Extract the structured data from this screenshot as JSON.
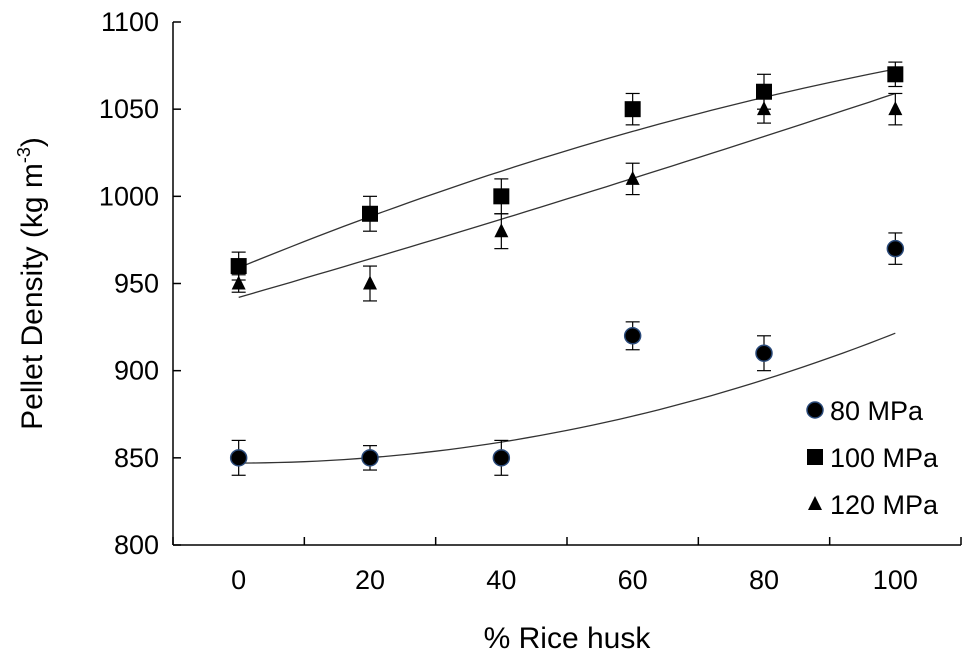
{
  "chart_data": {
    "type": "scatter",
    "xlabel": "% Rice husk",
    "ylabel_main": "Pellet Density (kg m",
    "ylabel_sup": "-3",
    "ylabel_close": ")",
    "xlim": [
      -10,
      110
    ],
    "ylim": [
      800,
      1100
    ],
    "xticks": [
      0,
      20,
      40,
      60,
      80,
      100
    ],
    "yticks": [
      800,
      850,
      900,
      950,
      1000,
      1050,
      1100
    ],
    "grid": false,
    "legend_position": "bottom-right",
    "series": [
      {
        "name": "80 MPa",
        "marker": "circle",
        "color": "#000000",
        "marker_edge": "#2a4a7a",
        "x": [
          0,
          20,
          40,
          60,
          80,
          100
        ],
        "y": [
          850,
          850,
          850,
          920,
          910,
          970
        ],
        "error": [
          10,
          7,
          10,
          8,
          10,
          9
        ],
        "fit": [
          847,
          0.0048,
          0.0074
        ]
      },
      {
        "name": "100 MPa",
        "marker": "square",
        "color": "#000000",
        "x": [
          0,
          20,
          40,
          60,
          80,
          100
        ],
        "y": [
          960,
          990,
          1000,
          1050,
          1060,
          1070
        ],
        "error": [
          8,
          10,
          10,
          9,
          10,
          7
        ],
        "fit": [
          959,
          1.55,
          -0.0041
        ]
      },
      {
        "name": "120 MPa",
        "marker": "triangle",
        "color": "#000000",
        "x": [
          0,
          20,
          40,
          60,
          80,
          100
        ],
        "y": [
          950,
          950,
          980,
          1010,
          1050,
          1050
        ],
        "error": [
          5,
          10,
          10,
          9,
          8,
          9
        ],
        "fit": [
          942,
          1.09,
          0.0008
        ]
      }
    ]
  }
}
